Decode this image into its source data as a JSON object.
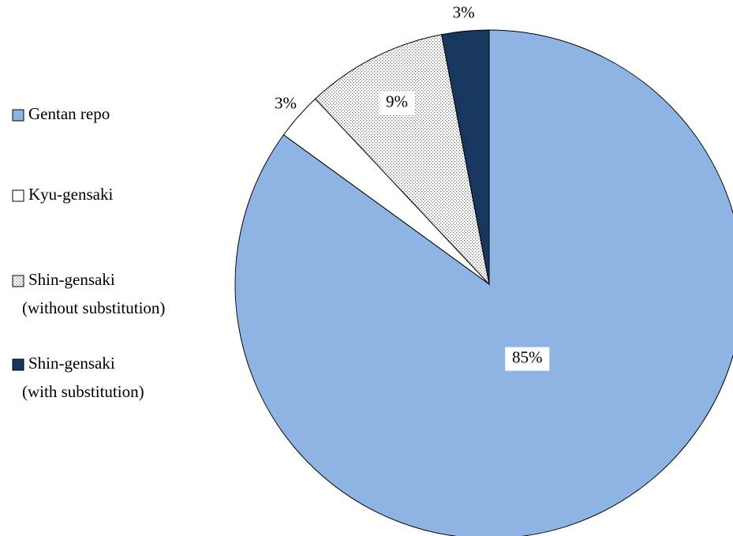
{
  "chart_data": {
    "type": "pie",
    "categories": [
      "Gentan repo",
      "Kyu-gensaki",
      "Shin-gensaki\n(without substitution)",
      "Shin-gensaki\n(with substitution)"
    ],
    "values": [
      85,
      3,
      9,
      3
    ],
    "value_labels": [
      "85%",
      "3%",
      "9%",
      "3%"
    ],
    "colors": [
      "#8eb4e3",
      "#ffffff",
      "#ffffff",
      "#17375e"
    ],
    "patterns": [
      "solid",
      "solid",
      "dots",
      "solid"
    ],
    "legend": "left"
  }
}
